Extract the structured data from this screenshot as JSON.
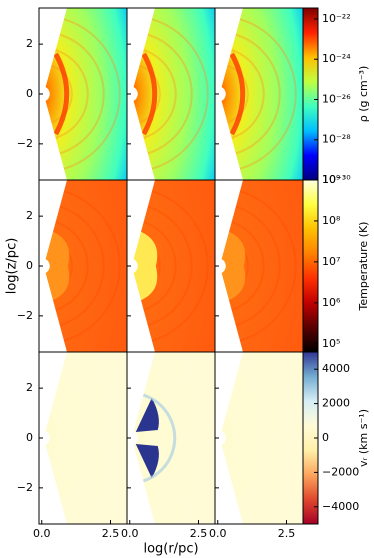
{
  "chart_data": [
    {
      "type": "image",
      "xlim": [
        -0.1,
        3.1
      ],
      "ylim": [
        -3.45,
        3.45
      ],
      "yticks": [
        {
          "value": -2,
          "label": "−2"
        },
        0,
        2
      ],
      "colorbar": {
        "label": "ρ (g cm⁻³)",
        "log": true,
        "lim": [
          1e-30,
          3.5e-22
        ],
        "ticks": [
          {
            "value": 1e-30,
            "label": "10⁻³⁰"
          },
          {
            "value": 1e-28,
            "label": "10⁻²⁸"
          },
          {
            "value": 1e-26,
            "label": "10⁻²⁶"
          },
          {
            "value": 1e-24,
            "label": "10⁻²⁴"
          },
          {
            "value": 1e-22,
            "label": "10⁻²²"
          }
        ],
        "cmap": [
          "#00007f",
          "#0000ff",
          "#00bfff",
          "#40ffbf",
          "#bfff40",
          "#ffbf00",
          "#ff2000",
          "#7f0000"
        ]
      }
    },
    {
      "type": "image",
      "xlim": [
        -0.1,
        3.1
      ],
      "ylim": [
        -3.45,
        3.45
      ],
      "ylabel": "log(z/pc)",
      "yticks": [
        {
          "value": -2,
          "label": "−2"
        },
        0,
        2
      ],
      "colorbar": {
        "label": "Temperature (K)",
        "log": true,
        "lim": [
          63000,
          1000000000.0
        ],
        "ticks": [
          {
            "value": 100000,
            "label": "10⁵"
          },
          {
            "value": 1000000,
            "label": "10⁶"
          },
          {
            "value": 10000000,
            "label": "10⁷"
          },
          {
            "value": 100000000,
            "label": "10⁸"
          },
          {
            "value": 1000000000,
            "label": "10⁹"
          }
        ],
        "cmap": [
          "#000000",
          "#5a0000",
          "#c00000",
          "#ff3000",
          "#ff8000",
          "#ffc000",
          "#ffff40",
          "#ffffe0"
        ]
      }
    },
    {
      "type": "image",
      "xlim": [
        -0.1,
        3.1
      ],
      "ylim": [
        -3.45,
        3.45
      ],
      "xlabel": "log(r/pc)",
      "xticks": [
        {
          "value": 0,
          "label": "0.0"
        },
        2.5
      ],
      "yticks": [
        {
          "value": -2,
          "label": "−2"
        },
        0,
        2
      ],
      "colorbar": {
        "label": "vᵣ (km s⁻¹)",
        "log": false,
        "lim": [
          -5000,
          5000
        ],
        "ticks": [
          {
            "value": -4000,
            "label": "−4000"
          },
          {
            "value": -2000,
            "label": "−2000"
          },
          0,
          2000,
          4000
        ],
        "cmap": [
          "#a50026",
          "#e0482e",
          "#fca55d",
          "#fff0a8",
          "#fffbd8",
          "#d6eef5",
          "#74add1",
          "#313695"
        ]
      }
    }
  ]
}
